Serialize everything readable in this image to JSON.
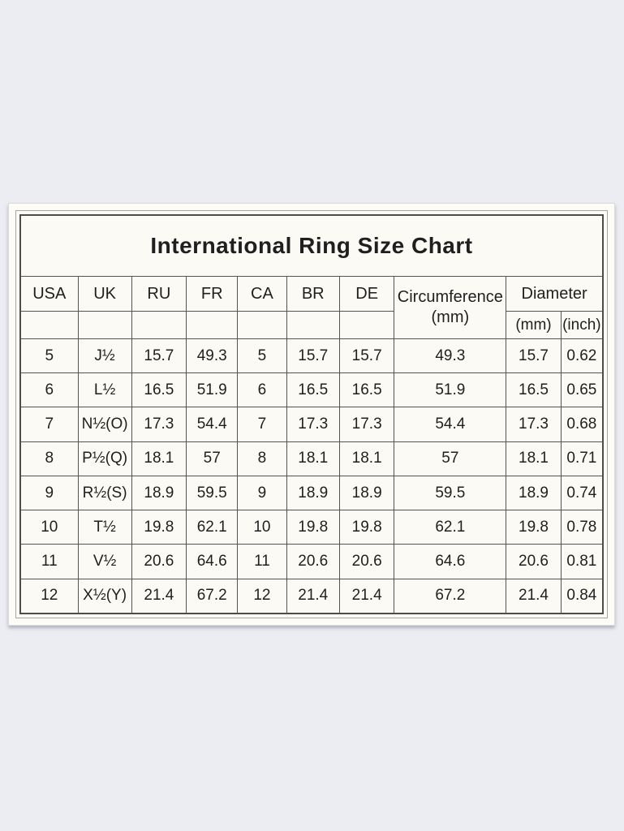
{
  "colors": {
    "page_background": "#ecedf3",
    "card_background": "#fdfcf7",
    "table_background": "#fbfaf4",
    "table_border": "#55544f",
    "text": "#1f1f1f"
  },
  "chart_data": {
    "type": "table",
    "title": "International Ring Size Chart",
    "columns": [
      "USA",
      "UK",
      "RU",
      "FR",
      "CA",
      "BR",
      "DE"
    ],
    "grouped_columns": {
      "circumference": {
        "label": "Circumference",
        "unit": "(mm)"
      },
      "diameter": {
        "label": "Diameter",
        "units": [
          "(mm)",
          "(inch)"
        ]
      }
    },
    "rows": [
      [
        "5",
        "J½",
        "15.7",
        "49.3",
        "5",
        "15.7",
        "15.7",
        "49.3",
        "15.7",
        "0.62"
      ],
      [
        "6",
        "L½",
        "16.5",
        "51.9",
        "6",
        "16.5",
        "16.5",
        "51.9",
        "16.5",
        "0.65"
      ],
      [
        "7",
        "N½(O)",
        "17.3",
        "54.4",
        "7",
        "17.3",
        "17.3",
        "54.4",
        "17.3",
        "0.68"
      ],
      [
        "8",
        "P½(Q)",
        "18.1",
        "57",
        "8",
        "18.1",
        "18.1",
        "57",
        "18.1",
        "0.71"
      ],
      [
        "9",
        "R½(S)",
        "18.9",
        "59.5",
        "9",
        "18.9",
        "18.9",
        "59.5",
        "18.9",
        "0.74"
      ],
      [
        "10",
        "T½",
        "19.8",
        "62.1",
        "10",
        "19.8",
        "19.8",
        "62.1",
        "19.8",
        "0.78"
      ],
      [
        "11",
        "V½",
        "20.6",
        "64.6",
        "11",
        "20.6",
        "20.6",
        "64.6",
        "20.6",
        "0.81"
      ],
      [
        "12",
        "X½(Y)",
        "21.4",
        "67.2",
        "12",
        "21.4",
        "21.4",
        "67.2",
        "21.4",
        "0.84"
      ]
    ]
  }
}
